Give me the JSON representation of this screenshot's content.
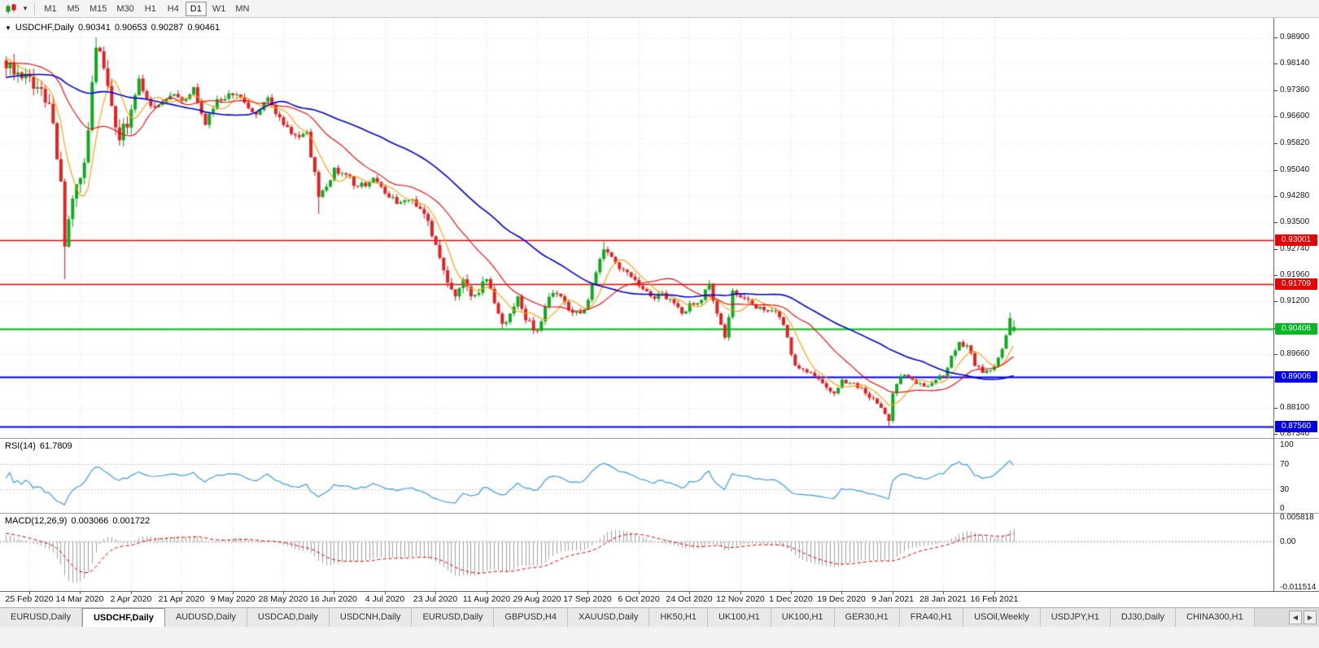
{
  "toolbar": {
    "timeframes": [
      "M1",
      "M5",
      "M15",
      "M30",
      "H1",
      "H4",
      "D1",
      "W1",
      "MN"
    ],
    "active_timeframe": "D1"
  },
  "chart": {
    "title": "USDCHF,Daily",
    "ohlc": {
      "open": "0.90341",
      "high": "0.90653",
      "low": "0.90287",
      "close": "0.90461"
    },
    "price_axis_ticks": [
      "0.98900",
      "0.98140",
      "0.97360",
      "0.96600",
      "0.95820",
      "0.95040",
      "0.94280",
      "0.93500",
      "0.92740",
      "0.91960",
      "0.91200",
      "0.90420",
      "0.89660",
      "0.88880",
      "0.88100",
      "0.87340"
    ],
    "hlines": [
      {
        "price": 0.93001,
        "label": "0.93001",
        "color": "#e80000",
        "width": 1.4
      },
      {
        "price": 0.91709,
        "label": "0.91709",
        "color": "#e80000",
        "width": 1.4
      },
      {
        "price": 0.90406,
        "label": "0.90406",
        "color": "#00b81f",
        "width": 2.2
      },
      {
        "price": 0.89006,
        "label": "0.89006",
        "color": "#0000e8",
        "width": 2.2
      },
      {
        "price": 0.8756,
        "label": "0.87560",
        "color": "#0000e8",
        "width": 2.2
      }
    ],
    "date_axis": [
      "25 Feb 2020",
      "14 Mar 2020",
      "2 Apr 2020",
      "21 Apr 2020",
      "9 May 2020",
      "28 May 2020",
      "16 Jun 2020",
      "4 Jul 2020",
      "23 Jul 2020",
      "11 Aug 2020",
      "29 Aug 2020",
      "17 Sep 2020",
      "6 Oct 2020",
      "24 Oct 2020",
      "12 Nov 2020",
      "1 Dec 2020",
      "19 Dec 2020",
      "9 Jan 2021",
      "28 Jan 2021",
      "16 Feb 2021"
    ]
  },
  "rsi": {
    "name": "RSI(14)",
    "value": "61.7809",
    "axis_labels": [
      "100",
      "70",
      "30",
      "0"
    ],
    "levels": [
      70,
      30
    ]
  },
  "macd": {
    "name": "MACD(12,26,9)",
    "value_main": "0.003066",
    "value_signal": "0.001722",
    "axis_labels": [
      "0.005818",
      "0.00",
      "-0.011514"
    ]
  },
  "tabs": {
    "items": [
      "EURUSD,Daily",
      "USDCHF,Daily",
      "AUDUSD,Daily",
      "USDCAD,Daily",
      "USDCNH,Daily",
      "EURUSD,Daily",
      "GBPUSD,H4",
      "XAUUSD,Daily",
      "HK50,H1",
      "UK100,H1",
      "UK100,H1",
      "GER30,H1",
      "FRA40,H1",
      "USOil,Weekly",
      "USDJPY,H1",
      "DJ30,Daily",
      "CHINA300,H1"
    ],
    "active_index": 1
  },
  "colors": {
    "up": "#089a18",
    "up_fill": "#12a921",
    "down": "#cf1212",
    "down_fill": "#e22222",
    "ma_fast": "#ff9c00",
    "ma_mid": "#f00000",
    "ma_slow": "#0000d0",
    "rsi_line": "#3f9be0",
    "macd_hist": "#a0a0a0",
    "macd_signal": "#e00000",
    "grid": "#e2e2e2"
  },
  "chart_data": {
    "type": "candlestick",
    "symbol": "USDCHF",
    "timeframe": "Daily",
    "title": "USDCHF,Daily 0.90341 0.90653 0.90287 0.90461",
    "x_tick_labels": [
      "25 Feb 2020",
      "14 Mar 2020",
      "2 Apr 2020",
      "21 Apr 2020",
      "9 May 2020",
      "28 May 2020",
      "16 Jun 2020",
      "4 Jul 2020",
      "23 Jul 2020",
      "11 Aug 2020",
      "29 Aug 2020",
      "17 Sep 2020",
      "6 Oct 2020",
      "24 Oct 2020",
      "12 Nov 2020",
      "1 Dec 2020",
      "19 Dec 2020",
      "9 Jan 2021",
      "28 Jan 2021",
      "16 Feb 2021"
    ],
    "candles_per_x_tick": 13,
    "first_visible_index": -6,
    "last_index": 252,
    "ylim": [
      0.87221,
      0.9947
    ],
    "horizontal_levels": [
      0.93001,
      0.91709,
      0.90406,
      0.89006,
      0.8756
    ],
    "prehistory_anchors": [
      [
        -66,
        0.969
      ],
      [
        -50,
        0.9725
      ],
      [
        -35,
        0.9755
      ],
      [
        -20,
        0.98
      ],
      [
        -12,
        0.9845
      ],
      [
        -8,
        0.983
      ],
      [
        -6,
        0.98
      ]
    ],
    "close_anchors": [
      [
        -3,
        0.9788
      ],
      [
        0,
        0.9775
      ],
      [
        2,
        0.9745
      ],
      [
        4,
        0.97
      ],
      [
        6,
        0.964
      ],
      [
        8,
        0.947
      ],
      [
        9,
        0.928
      ],
      [
        10,
        0.936
      ],
      [
        11,
        0.942
      ],
      [
        13,
        0.948
      ],
      [
        15,
        0.962
      ],
      [
        16,
        0.976
      ],
      [
        17,
        0.986
      ],
      [
        19,
        0.98
      ],
      [
        21,
        0.969
      ],
      [
        23,
        0.959
      ],
      [
        26,
        0.968
      ],
      [
        28,
        0.977
      ],
      [
        31,
        0.969
      ],
      [
        34,
        0.97
      ],
      [
        37,
        0.9725
      ],
      [
        39,
        0.9705
      ],
      [
        42,
        0.9745
      ],
      [
        45,
        0.9635
      ],
      [
        48,
        0.971
      ],
      [
        52,
        0.9722
      ],
      [
        55,
        0.97
      ],
      [
        58,
        0.9665
      ],
      [
        61,
        0.9715
      ],
      [
        65,
        0.9635
      ],
      [
        68,
        0.9605
      ],
      [
        71,
        0.9615
      ],
      [
        74,
        0.9425
      ],
      [
        76,
        0.9455
      ],
      [
        78,
        0.951
      ],
      [
        81,
        0.949
      ],
      [
        84,
        0.9455
      ],
      [
        88,
        0.948
      ],
      [
        91,
        0.9435
      ],
      [
        94,
        0.9405
      ],
      [
        97,
        0.9415
      ],
      [
        100,
        0.939
      ],
      [
        102,
        0.9355
      ],
      [
        104,
        0.9285
      ],
      [
        107,
        0.9175
      ],
      [
        109,
        0.9135
      ],
      [
        111,
        0.9185
      ],
      [
        113,
        0.9135
      ],
      [
        115,
        0.9145
      ],
      [
        117,
        0.9185
      ],
      [
        119,
        0.9115
      ],
      [
        121,
        0.9055
      ],
      [
        123,
        0.9085
      ],
      [
        125,
        0.9135
      ],
      [
        127,
        0.9065
      ],
      [
        130,
        0.9035
      ],
      [
        132,
        0.9105
      ],
      [
        134,
        0.9145
      ],
      [
        136,
        0.9135
      ],
      [
        138,
        0.9095
      ],
      [
        141,
        0.9085
      ],
      [
        143,
        0.9125
      ],
      [
        145,
        0.9205
      ],
      [
        147,
        0.9272
      ],
      [
        149,
        0.925
      ],
      [
        151,
        0.9215
      ],
      [
        154,
        0.9192
      ],
      [
        156,
        0.9165
      ],
      [
        159,
        0.9135
      ],
      [
        162,
        0.9145
      ],
      [
        165,
        0.9115
      ],
      [
        167,
        0.9085
      ],
      [
        169,
        0.9115
      ],
      [
        172,
        0.9125
      ],
      [
        174,
        0.9172
      ],
      [
        176,
        0.9085
      ],
      [
        178,
        0.9015
      ],
      [
        180,
        0.9152
      ],
      [
        182,
        0.9132
      ],
      [
        185,
        0.9112
      ],
      [
        188,
        0.9095
      ],
      [
        191,
        0.9092
      ],
      [
        193,
        0.9052
      ],
      [
        195,
        0.8965
      ],
      [
        197,
        0.8925
      ],
      [
        200,
        0.8912
      ],
      [
        203,
        0.8882
      ],
      [
        206,
        0.8852
      ],
      [
        208,
        0.8892
      ],
      [
        211,
        0.8882
      ],
      [
        214,
        0.8852
      ],
      [
        217,
        0.8822
      ],
      [
        219,
        0.8792
      ],
      [
        220,
        0.8772
      ],
      [
        221,
        0.8852
      ],
      [
        223,
        0.8902
      ],
      [
        226,
        0.8892
      ],
      [
        229,
        0.8872
      ],
      [
        232,
        0.8892
      ],
      [
        234,
        0.8902
      ],
      [
        236,
        0.8962
      ],
      [
        238,
        0.9002
      ],
      [
        240,
        0.8992
      ],
      [
        242,
        0.8932
      ],
      [
        244,
        0.8912
      ],
      [
        247,
        0.8932
      ],
      [
        249,
        0.8982
      ],
      [
        251,
        0.9072
      ],
      [
        252,
        0.90461
      ]
    ],
    "wick_overrides": {
      "9": {
        "low": 0.9185
      },
      "17": {
        "high": 0.989
      },
      "74": {
        "low": 0.9376
      },
      "121": {
        "low": 0.9041
      },
      "147": {
        "high": 0.9295
      },
      "220": {
        "low": 0.8757
      },
      "251": {
        "high": 0.9088
      },
      "252": {
        "open": 0.90341,
        "high": 0.90653,
        "low": 0.90287,
        "close": 0.90461
      }
    },
    "noise": {
      "seed": 20210224,
      "base_amp": 0.0011
    },
    "moving_averages": [
      {
        "period": 7,
        "color_key": "ma_fast"
      },
      {
        "period": 21,
        "color_key": "ma_mid"
      },
      {
        "period": 50,
        "color_key": "ma_slow"
      }
    ],
    "rsi_period": 14,
    "rsi_last_value": 61.7809,
    "macd_params": [
      12,
      26,
      9
    ],
    "macd_last_values": [
      0.003066,
      0.001722
    ],
    "macd_axis_range": [
      -0.011514,
      0.005818
    ]
  }
}
